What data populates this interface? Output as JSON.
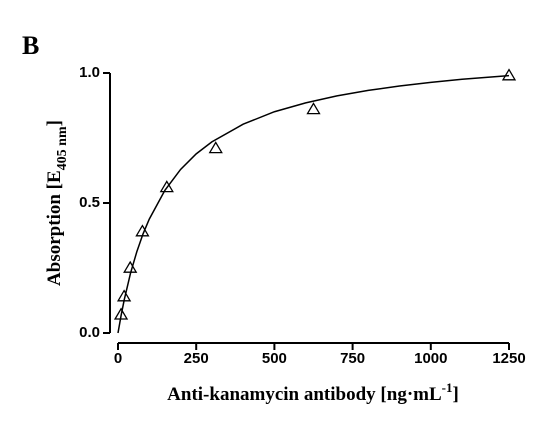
{
  "chart_data": {
    "type": "scatter",
    "panel_label": "B",
    "x_label": {
      "text": "Anti-kanamycin antibody [ng·mL",
      "superscript": "-1",
      "end": "]"
    },
    "y_label": {
      "text": "Absorption [E",
      "subscript": "405 nm",
      "end": "]"
    },
    "xlim": [
      0,
      1250
    ],
    "xticks": [
      0,
      250,
      500,
      750,
      1000,
      1250
    ],
    "ylim": [
      0,
      1
    ],
    "yticks": [
      {
        "value": 0,
        "label": "0.0"
      },
      0.5,
      {
        "value": 1,
        "label": "1.0"
      }
    ],
    "series": [
      {
        "marker": "triangle",
        "color": "#000000",
        "x": [
          9.77,
          19.5,
          39,
          78,
          156,
          312.5,
          625,
          1250
        ],
        "values": [
          0.07,
          0.14,
          0.25,
          0.39,
          0.56,
          0.71,
          0.86,
          0.99
        ]
      },
      {
        "marker": "line",
        "color": "#000000",
        "x": [
          0,
          10,
          20,
          40,
          60,
          80,
          100,
          150,
          200,
          250,
          300,
          400,
          500,
          600,
          700,
          800,
          900,
          1000,
          1100,
          1250
        ],
        "values": [
          0,
          0.068,
          0.128,
          0.23,
          0.312,
          0.381,
          0.438,
          0.549,
          0.629,
          0.689,
          0.735,
          0.803,
          0.851,
          0.885,
          0.912,
          0.933,
          0.95,
          0.964,
          0.976,
          0.99
        ]
      }
    ]
  }
}
